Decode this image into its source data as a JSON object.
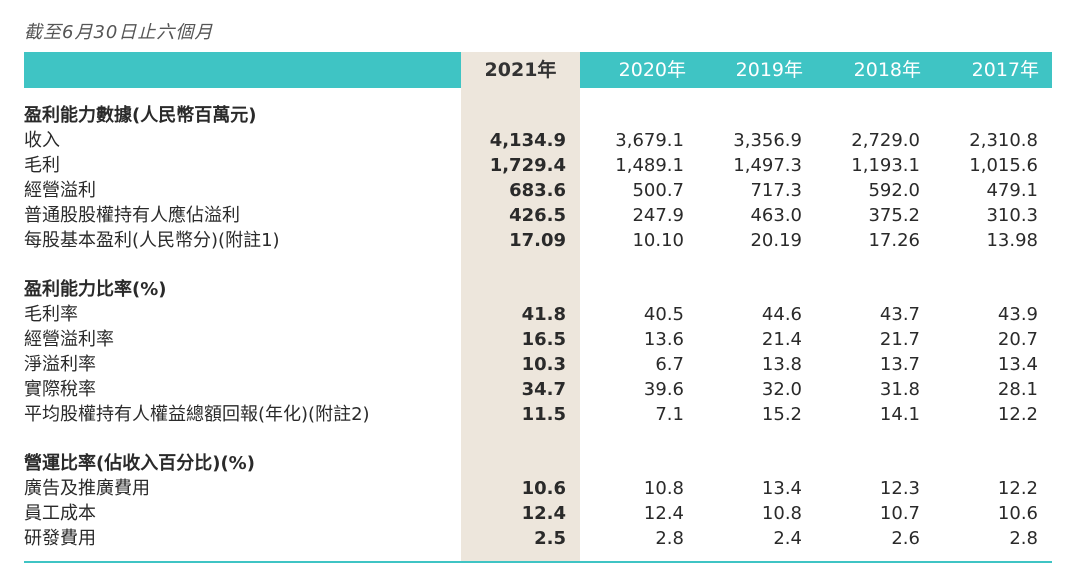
{
  "caption": "截至6月30日止六個月",
  "years": [
    "2021年",
    "2020年",
    "2019年",
    "2018年",
    "2017年"
  ],
  "sections": [
    {
      "title": "盈利能力數據(人民幣百萬元)",
      "rows": [
        {
          "label": "收入",
          "values": [
            "4,134.9",
            "3,679.1",
            "3,356.9",
            "2,729.0",
            "2,310.8"
          ]
        },
        {
          "label": "毛利",
          "values": [
            "1,729.4",
            "1,489.1",
            "1,497.3",
            "1,193.1",
            "1,015.6"
          ]
        },
        {
          "label": "經營溢利",
          "values": [
            "683.6",
            "500.7",
            "717.3",
            "592.0",
            "479.1"
          ]
        },
        {
          "label": "普通股股權持有人應佔溢利",
          "values": [
            "426.5",
            "247.9",
            "463.0",
            "375.2",
            "310.3"
          ]
        },
        {
          "label": "每股基本盈利(人民幣分)(附註1)",
          "values": [
            "17.09",
            "10.10",
            "20.19",
            "17.26",
            "13.98"
          ]
        }
      ]
    },
    {
      "title": "盈利能力比率(%)",
      "rows": [
        {
          "label": "毛利率",
          "values": [
            "41.8",
            "40.5",
            "44.6",
            "43.7",
            "43.9"
          ]
        },
        {
          "label": "經營溢利率",
          "values": [
            "16.5",
            "13.6",
            "21.4",
            "21.7",
            "20.7"
          ]
        },
        {
          "label": "淨溢利率",
          "values": [
            "10.3",
            "6.7",
            "13.8",
            "13.7",
            "13.4"
          ]
        },
        {
          "label": "實際稅率",
          "values": [
            "34.7",
            "39.6",
            "32.0",
            "31.8",
            "28.1"
          ]
        },
        {
          "label": "平均股權持有人權益總額回報(年化)(附註2)",
          "values": [
            "11.5",
            "7.1",
            "15.2",
            "14.1",
            "12.2"
          ]
        }
      ]
    },
    {
      "title": "營運比率(佔收入百分比)(%)",
      "rows": [
        {
          "label": "廣告及推廣費用",
          "values": [
            "10.6",
            "10.8",
            "13.4",
            "12.3",
            "12.2"
          ]
        },
        {
          "label": "員工成本",
          "values": [
            "12.4",
            "12.4",
            "10.8",
            "10.7",
            "10.6"
          ]
        },
        {
          "label": "研發費用",
          "values": [
            "2.5",
            "2.8",
            "2.4",
            "2.6",
            "2.8"
          ]
        }
      ]
    }
  ],
  "colors": {
    "header": "#3fc4c4",
    "highlight": "#ede6dc"
  }
}
